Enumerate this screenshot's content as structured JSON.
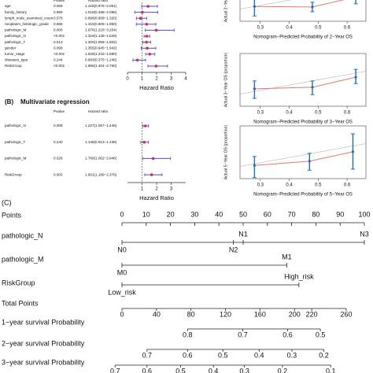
{
  "panel_a": {
    "header": [
      "Pvalue",
      "Hazard ratio"
    ],
    "rows": [
      {
        "variable": "age",
        "pvalue": "0.068",
        "hr_text": "1.418(0.975−2.061)",
        "hr": 1.418,
        "lo": 0.975,
        "hi": 2.061
      },
      {
        "variable": "family_history",
        "pvalue": "0.959",
        "hr_text": "1.019(0.498−2.085)",
        "hr": 1.019,
        "lo": 0.498,
        "hi": 2.085
      },
      {
        "variable": "lymph_node_examined_count",
        "pvalue": "0.578",
        "hr_text": "0.896(0.609−1.320)",
        "hr": 0.896,
        "lo": 0.609,
        "hi": 1.32
      },
      {
        "variable": "neoplasm_histologic_grade",
        "pvalue": "0.686",
        "hr_text": "1.315(0.606−1.950)",
        "hr": 1.315,
        "lo": 0.606,
        "hi": 1.95
      },
      {
        "variable": "pathologic_M",
        "pvalue": "0.009",
        "hr_text": "1.976(1.218−3.204)",
        "hr": 1.976,
        "lo": 1.218,
        "hi": 3.204
      },
      {
        "variable": "pathologic_N",
        "pvalue": "<0.001",
        "hr_text": "1.319(1.138−1.529)",
        "hr": 1.319,
        "lo": 1.138,
        "hi": 1.529
      },
      {
        "variable": "pathologic_T",
        "pvalue": "0.013",
        "hr_text": "1.300(1.056−1.602)",
        "hr": 1.3,
        "lo": 1.056,
        "hi": 1.602
      },
      {
        "variable": "gender",
        "pvalue": "0.098",
        "hr_text": "1.355(0.945−1.942)",
        "hr": 1.355,
        "lo": 0.945,
        "hi": 1.942
      },
      {
        "variable": "tumor_stage",
        "pvalue": "<0.001",
        "hr_text": "1.529(1.243−1.880)",
        "hr": 1.529,
        "lo": 1.243,
        "hi": 1.88
      },
      {
        "variable": "diseases_type",
        "pvalue": "0.244",
        "hr_text": "0.683(0.375−1.245)",
        "hr": 0.683,
        "lo": 0.375,
        "hi": 1.245
      },
      {
        "variable": "RiskGroup",
        "pvalue": "<0.001",
        "hr_text": "1.965(1.404−2.750)",
        "hr": 1.965,
        "lo": 1.404,
        "hi": 2.75
      }
    ],
    "xlabel": "Hazard Ratio",
    "xlim": [
      0,
      4
    ],
    "xticks": [
      0,
      1,
      2,
      3,
      4
    ],
    "ref_line": 1
  },
  "panel_b": {
    "label": "(B)",
    "title": "Multivariate regression",
    "header": [
      "Pvalue",
      "Hazard ratio"
    ],
    "rows": [
      {
        "variable": "pathologic_N",
        "pvalue": "0.008",
        "hr_text": "1.227(1.057−1.446)",
        "hr": 1.227,
        "lo": 1.057,
        "hi": 1.446
      },
      {
        "variable": "pathologic_T",
        "pvalue": "0.240",
        "hr_text": "1.146(0.913−1.438)",
        "hr": 1.146,
        "lo": 0.913,
        "hi": 1.438
      },
      {
        "variable": "pathologic_M",
        "pvalue": "0.028",
        "hr_text": "1.768(1.062−2.946)",
        "hr": 1.768,
        "lo": 1.062,
        "hi": 2.946
      },
      {
        "variable": "RiskGroup",
        "pvalue": "0.003",
        "hr_text": "1.661(1.189−2.376)",
        "hr": 1.661,
        "lo": 1.189,
        "hi": 2.376
      }
    ],
    "xlabel": "Hazard Ratio",
    "xlim": [
      0,
      4
    ],
    "xticks": [
      1,
      2,
      3
    ],
    "ref_line": 1
  },
  "calibration": [
    {
      "xlabel": "Nomogram−Predicted Probability of 2−Year OS",
      "ylabel": "Actual 2−Year OS (proportion)",
      "xlim": [
        0.23,
        0.665
      ],
      "xticks": [
        0.3,
        0.4,
        0.5,
        0.6
      ],
      "ylim": [
        0,
        1
      ],
      "x": [
        0.28,
        0.48,
        0.63
      ],
      "y": [
        0.28,
        0.27,
        0.46
      ],
      "lo": [
        0.1,
        0.18,
        0.33
      ],
      "hi": [
        0.42,
        0.36,
        0.62
      ]
    },
    {
      "xlabel": "Nomogram−Predicted Probability of 3−Year OS",
      "ylabel": "Actual 3−Year OS (proportion)",
      "xlim": [
        0.23,
        0.665
      ],
      "xticks": [
        0.3,
        0.4,
        0.5,
        0.6
      ],
      "ylim": [
        0,
        1
      ],
      "x": [
        0.28,
        0.48,
        0.63
      ],
      "y": [
        0.33,
        0.36,
        0.55
      ],
      "lo": [
        0.15,
        0.22,
        0.43
      ],
      "hi": [
        0.48,
        0.48,
        0.7
      ]
    },
    {
      "xlabel": "Nomogram−Predicted Probability of 5−Year OS",
      "ylabel": "Actual 5−Year OS (proportion)",
      "xlim": [
        0.23,
        0.665
      ],
      "xticks": [
        0.3,
        0.4,
        0.5,
        0.6
      ],
      "ylim": [
        0,
        1
      ],
      "x": [
        0.28,
        0.47,
        0.62
      ],
      "y": [
        0.25,
        0.33,
        0.51
      ],
      "lo": [
        0.02,
        0.16,
        0.18
      ],
      "hi": [
        0.42,
        0.48,
        0.85
      ]
    }
  ],
  "nomogram": {
    "label": "(C)",
    "points": {
      "name": "Points",
      "lim": [
        0,
        100
      ],
      "ticks": [
        0,
        10,
        20,
        30,
        40,
        50,
        60,
        70,
        80,
        90,
        100
      ]
    },
    "predictors": [
      {
        "name": "pathologic_N",
        "levels": [
          {
            "label": "N0",
            "points": 0
          },
          {
            "label": "N1",
            "points": 50
          },
          {
            "label": "N2",
            "points": 46
          },
          {
            "label": "N3",
            "points": 100
          }
        ]
      },
      {
        "name": "pathologic_M",
        "levels": [
          {
            "label": "M0",
            "points": 0
          },
          {
            "label": "M1",
            "points": 68
          }
        ]
      },
      {
        "name": "RiskGroup",
        "levels": [
          {
            "label": "Low_risk",
            "points": 0
          },
          {
            "label": "High_risk",
            "points": 73
          }
        ]
      }
    ],
    "total_points": {
      "name": "Total Points",
      "lim": [
        0,
        260
      ],
      "ticks": [
        0,
        40,
        80,
        120,
        160,
        200,
        220,
        260
      ]
    },
    "survival": [
      {
        "name": "1−year survival Probability",
        "ticks": [
          0.8,
          0.7,
          0.6,
          0.5
        ],
        "at_total_points": [
          76,
          140,
          192,
          230
        ]
      },
      {
        "name": "2−year survival Probability",
        "ticks": [
          0.7,
          0.6,
          0.5,
          0.4,
          0.3,
          0.2
        ],
        "at_total_points": [
          29,
          76,
          117,
          159,
          197,
          234
        ]
      },
      {
        "name": "3−year survival Probability",
        "ticks": [
          0.7,
          0.6,
          0.5,
          0.4,
          0.3,
          0.2,
          0.1
        ],
        "at_total_points": [
          -8,
          29,
          68,
          106,
          142,
          186,
          242
        ]
      }
    ]
  }
}
